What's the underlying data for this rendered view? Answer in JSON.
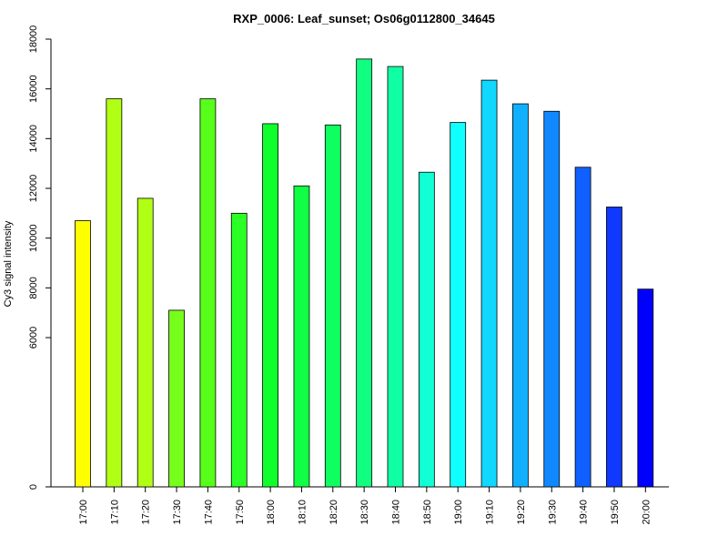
{
  "chart_data": {
    "type": "bar",
    "title": "RXP_0006: Leaf_sunset; Os06g0112800_34645",
    "xlabel": "",
    "ylabel": "Cy3 signal intensity",
    "ylim": [
      0,
      18000
    ],
    "yticks": [
      0,
      6000,
      8000,
      10000,
      12000,
      14000,
      16000,
      18000
    ],
    "grid": false,
    "categories": [
      "17:00",
      "17:10",
      "17:20",
      "17:30",
      "17:40",
      "17:50",
      "18:00",
      "18:10",
      "18:20",
      "18:30",
      "18:40",
      "18:50",
      "19:00",
      "19:10",
      "19:20",
      "19:30",
      "19:40",
      "19:50",
      "20:00"
    ],
    "values": [
      10700,
      15600,
      11600,
      7100,
      15600,
      11000,
      14600,
      12100,
      14550,
      17200,
      16900,
      12650,
      14650,
      16350,
      15400,
      15100,
      12850,
      11250,
      7950
    ],
    "colors": [
      "#ffff00",
      "#b0ff14",
      "#b0ff14",
      "#77ff1c",
      "#57ff1a",
      "#2cff26",
      "#10ff2c",
      "#10ff44",
      "#10ff60",
      "#10ff80",
      "#10ffa4",
      "#10ffd4",
      "#10ffff",
      "#10d8ff",
      "#10b0ff",
      "#1088ff",
      "#1060ff",
      "#1038ff",
      "#0000ff"
    ]
  }
}
